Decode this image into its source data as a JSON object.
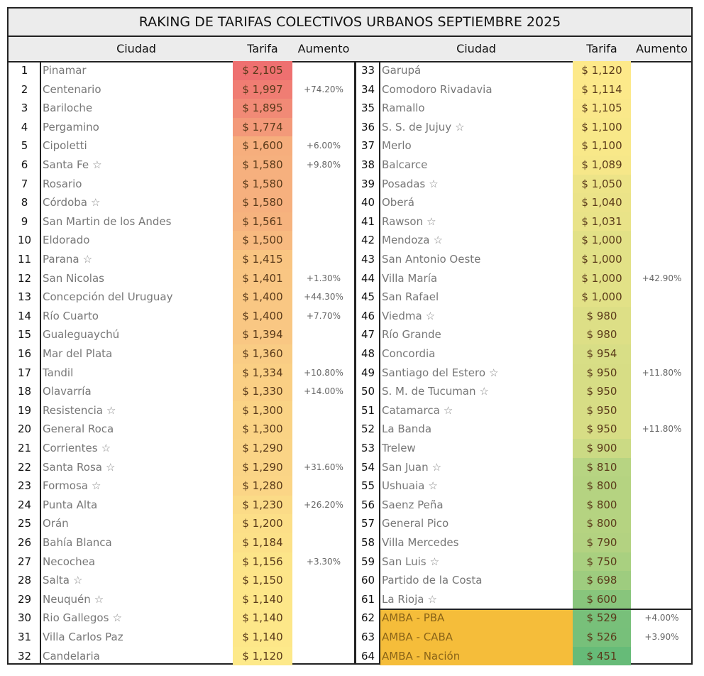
{
  "title": "RAKING DE TARIFAS COLECTIVOS URBANOS SEPTIEMBRE 2025",
  "headers": {
    "ciudad": "Ciudad",
    "tarifa": "Tarifa",
    "aumento": "Aumento"
  },
  "colors": {
    "high": "#ee7070",
    "mid": "#fde98a",
    "low": "#66bb78",
    "amba": "#f5bd3a"
  },
  "rows": [
    {
      "rank": "1",
      "city": "Pinamar",
      "star": false,
      "tarifa": "$ 2,105",
      "value": 2105,
      "aumento": ""
    },
    {
      "rank": "2",
      "city": "Centenario",
      "star": false,
      "tarifa": "$ 1,997",
      "value": 1997,
      "aumento": "+74.20%"
    },
    {
      "rank": "3",
      "city": "Bariloche",
      "star": false,
      "tarifa": "$ 1,895",
      "value": 1895,
      "aumento": ""
    },
    {
      "rank": "4",
      "city": "Pergamino",
      "star": false,
      "tarifa": "$ 1,774",
      "value": 1774,
      "aumento": ""
    },
    {
      "rank": "5",
      "city": "Cipoletti",
      "star": false,
      "tarifa": "$ 1,600",
      "value": 1600,
      "aumento": "+6.00%"
    },
    {
      "rank": "6",
      "city": "Santa Fe",
      "star": true,
      "tarifa": "$ 1,580",
      "value": 1580,
      "aumento": "+9.80%"
    },
    {
      "rank": "7",
      "city": "Rosario",
      "star": false,
      "tarifa": "$ 1,580",
      "value": 1580,
      "aumento": ""
    },
    {
      "rank": "8",
      "city": "Córdoba",
      "star": true,
      "tarifa": "$ 1,580",
      "value": 1580,
      "aumento": ""
    },
    {
      "rank": "9",
      "city": "San Martin de los Andes",
      "star": false,
      "tarifa": "$ 1,561",
      "value": 1561,
      "aumento": ""
    },
    {
      "rank": "10",
      "city": "Eldorado",
      "star": false,
      "tarifa": "$ 1,500",
      "value": 1500,
      "aumento": ""
    },
    {
      "rank": "11",
      "city": "Parana",
      "star": true,
      "tarifa": "$ 1,415",
      "value": 1415,
      "aumento": ""
    },
    {
      "rank": "12",
      "city": "San Nicolas",
      "star": false,
      "tarifa": "$ 1,401",
      "value": 1401,
      "aumento": "+1.30%"
    },
    {
      "rank": "13",
      "city": "Concepción del Uruguay",
      "star": false,
      "tarifa": "$ 1,400",
      "value": 1400,
      "aumento": "+44.30%"
    },
    {
      "rank": "14",
      "city": "Río Cuarto",
      "star": false,
      "tarifa": "$ 1,400",
      "value": 1400,
      "aumento": "+7.70%"
    },
    {
      "rank": "15",
      "city": "Gualeguaychú",
      "star": false,
      "tarifa": "$ 1,394",
      "value": 1394,
      "aumento": ""
    },
    {
      "rank": "16",
      "city": "Mar del Plata",
      "star": false,
      "tarifa": "$ 1,360",
      "value": 1360,
      "aumento": ""
    },
    {
      "rank": "17",
      "city": "Tandil",
      "star": false,
      "tarifa": "$ 1,334",
      "value": 1334,
      "aumento": "+10.80%"
    },
    {
      "rank": "18",
      "city": "Olavarría",
      "star": false,
      "tarifa": "$ 1,330",
      "value": 1330,
      "aumento": "+14.00%"
    },
    {
      "rank": "19",
      "city": "Resistencia",
      "star": true,
      "tarifa": "$ 1,300",
      "value": 1300,
      "aumento": ""
    },
    {
      "rank": "20",
      "city": "General Roca",
      "star": false,
      "tarifa": "$ 1,300",
      "value": 1300,
      "aumento": ""
    },
    {
      "rank": "21",
      "city": "Corrientes",
      "star": true,
      "tarifa": "$ 1,290",
      "value": 1290,
      "aumento": ""
    },
    {
      "rank": "22",
      "city": "Santa Rosa",
      "star": true,
      "tarifa": "$ 1,290",
      "value": 1290,
      "aumento": "+31.60%"
    },
    {
      "rank": "23",
      "city": "Formosa",
      "star": true,
      "tarifa": "$ 1,280",
      "value": 1280,
      "aumento": ""
    },
    {
      "rank": "24",
      "city": "Punta Alta",
      "star": false,
      "tarifa": "$ 1,230",
      "value": 1230,
      "aumento": "+26.20%"
    },
    {
      "rank": "25",
      "city": "Orán",
      "star": false,
      "tarifa": "$ 1,200",
      "value": 1200,
      "aumento": ""
    },
    {
      "rank": "26",
      "city": "Bahía Blanca",
      "star": false,
      "tarifa": "$ 1,184",
      "value": 1184,
      "aumento": ""
    },
    {
      "rank": "27",
      "city": "Necochea",
      "star": false,
      "tarifa": "$ 1,156",
      "value": 1156,
      "aumento": "+3.30%"
    },
    {
      "rank": "28",
      "city": "Salta",
      "star": true,
      "tarifa": "$ 1,150",
      "value": 1150,
      "aumento": ""
    },
    {
      "rank": "29",
      "city": "Neuquén",
      "star": true,
      "tarifa": "$ 1,140",
      "value": 1140,
      "aumento": ""
    },
    {
      "rank": "30",
      "city": "Rio Gallegos",
      "star": true,
      "tarifa": "$ 1,140",
      "value": 1140,
      "aumento": ""
    },
    {
      "rank": "31",
      "city": "Villa Carlos Paz",
      "star": false,
      "tarifa": "$ 1,140",
      "value": 1140,
      "aumento": ""
    },
    {
      "rank": "32",
      "city": "Candelaria",
      "star": false,
      "tarifa": "$ 1,120",
      "value": 1120,
      "aumento": ""
    },
    {
      "rank": "33",
      "city": "Garupá",
      "star": false,
      "tarifa": "$ 1,120",
      "value": 1120,
      "aumento": ""
    },
    {
      "rank": "34",
      "city": "Comodoro Rivadavia",
      "star": false,
      "tarifa": "$ 1,114",
      "value": 1114,
      "aumento": ""
    },
    {
      "rank": "35",
      "city": "Ramallo",
      "star": false,
      "tarifa": "$ 1,105",
      "value": 1105,
      "aumento": ""
    },
    {
      "rank": "36",
      "city": "S. S. de Jujuy",
      "star": true,
      "tarifa": "$ 1,100",
      "value": 1100,
      "aumento": ""
    },
    {
      "rank": "37",
      "city": "Merlo",
      "star": false,
      "tarifa": "$ 1,100",
      "value": 1100,
      "aumento": ""
    },
    {
      "rank": "38",
      "city": "Balcarce",
      "star": false,
      "tarifa": "$ 1,089",
      "value": 1089,
      "aumento": ""
    },
    {
      "rank": "39",
      "city": "Posadas",
      "star": true,
      "tarifa": "$ 1,050",
      "value": 1050,
      "aumento": ""
    },
    {
      "rank": "40",
      "city": "Oberá",
      "star": false,
      "tarifa": "$ 1,040",
      "value": 1040,
      "aumento": ""
    },
    {
      "rank": "41",
      "city": "Rawson",
      "star": true,
      "tarifa": "$ 1,031",
      "value": 1031,
      "aumento": ""
    },
    {
      "rank": "42",
      "city": "Mendoza",
      "star": true,
      "tarifa": "$ 1,000",
      "value": 1000,
      "aumento": ""
    },
    {
      "rank": "43",
      "city": "San Antonio Oeste",
      "star": false,
      "tarifa": "$ 1,000",
      "value": 1000,
      "aumento": ""
    },
    {
      "rank": "44",
      "city": "Villa María",
      "star": false,
      "tarifa": "$ 1,000",
      "value": 1000,
      "aumento": "+42.90%"
    },
    {
      "rank": "45",
      "city": "San Rafael",
      "star": false,
      "tarifa": "$ 1,000",
      "value": 1000,
      "aumento": ""
    },
    {
      "rank": "46",
      "city": "Viedma",
      "star": true,
      "tarifa": "$ 980",
      "value": 980,
      "aumento": ""
    },
    {
      "rank": "47",
      "city": "Río Grande",
      "star": false,
      "tarifa": "$ 980",
      "value": 980,
      "aumento": ""
    },
    {
      "rank": "48",
      "city": "Concordia",
      "star": false,
      "tarifa": "$ 954",
      "value": 954,
      "aumento": ""
    },
    {
      "rank": "49",
      "city": "Santiago del Estero",
      "star": true,
      "tarifa": "$ 950",
      "value": 950,
      "aumento": "+11.80%"
    },
    {
      "rank": "50",
      "city": "S. M. de Tucuman",
      "star": true,
      "tarifa": "$ 950",
      "value": 950,
      "aumento": ""
    },
    {
      "rank": "51",
      "city": "Catamarca",
      "star": true,
      "tarifa": "$ 950",
      "value": 950,
      "aumento": ""
    },
    {
      "rank": "52",
      "city": "La Banda",
      "star": false,
      "tarifa": "$ 950",
      "value": 950,
      "aumento": "+11.80%"
    },
    {
      "rank": "53",
      "city": "Trelew",
      "star": false,
      "tarifa": "$ 900",
      "value": 900,
      "aumento": ""
    },
    {
      "rank": "54",
      "city": "San Juan",
      "star": true,
      "tarifa": "$ 810",
      "value": 810,
      "aumento": ""
    },
    {
      "rank": "55",
      "city": "Ushuaia",
      "star": true,
      "tarifa": "$ 800",
      "value": 800,
      "aumento": ""
    },
    {
      "rank": "56",
      "city": "Saenz Peña",
      "star": false,
      "tarifa": "$ 800",
      "value": 800,
      "aumento": ""
    },
    {
      "rank": "57",
      "city": "General Pico",
      "star": false,
      "tarifa": "$ 800",
      "value": 800,
      "aumento": ""
    },
    {
      "rank": "58",
      "city": "Villa Mercedes",
      "star": false,
      "tarifa": "$ 790",
      "value": 790,
      "aumento": ""
    },
    {
      "rank": "59",
      "city": "San Luis",
      "star": true,
      "tarifa": "$ 750",
      "value": 750,
      "aumento": ""
    },
    {
      "rank": "60",
      "city": "Partido de la Costa",
      "star": false,
      "tarifa": "$ 698",
      "value": 698,
      "aumento": ""
    },
    {
      "rank": "61",
      "city": "La Rioja",
      "star": true,
      "tarifa": "$ 600",
      "value": 600,
      "aumento": ""
    },
    {
      "rank": "62",
      "city": "AMBA - PBA",
      "star": false,
      "tarifa": "$ 529",
      "value": 529,
      "aumento": "+4.00%",
      "amba": true
    },
    {
      "rank": "63",
      "city": "AMBA - CABA",
      "star": false,
      "tarifa": "$ 526",
      "value": 526,
      "aumento": "+3.90%",
      "amba": true
    },
    {
      "rank": "64",
      "city": "AMBA - Nación",
      "star": false,
      "tarifa": "$ 451",
      "value": 451,
      "aumento": "",
      "amba": true
    }
  ],
  "star_glyph": "☆"
}
